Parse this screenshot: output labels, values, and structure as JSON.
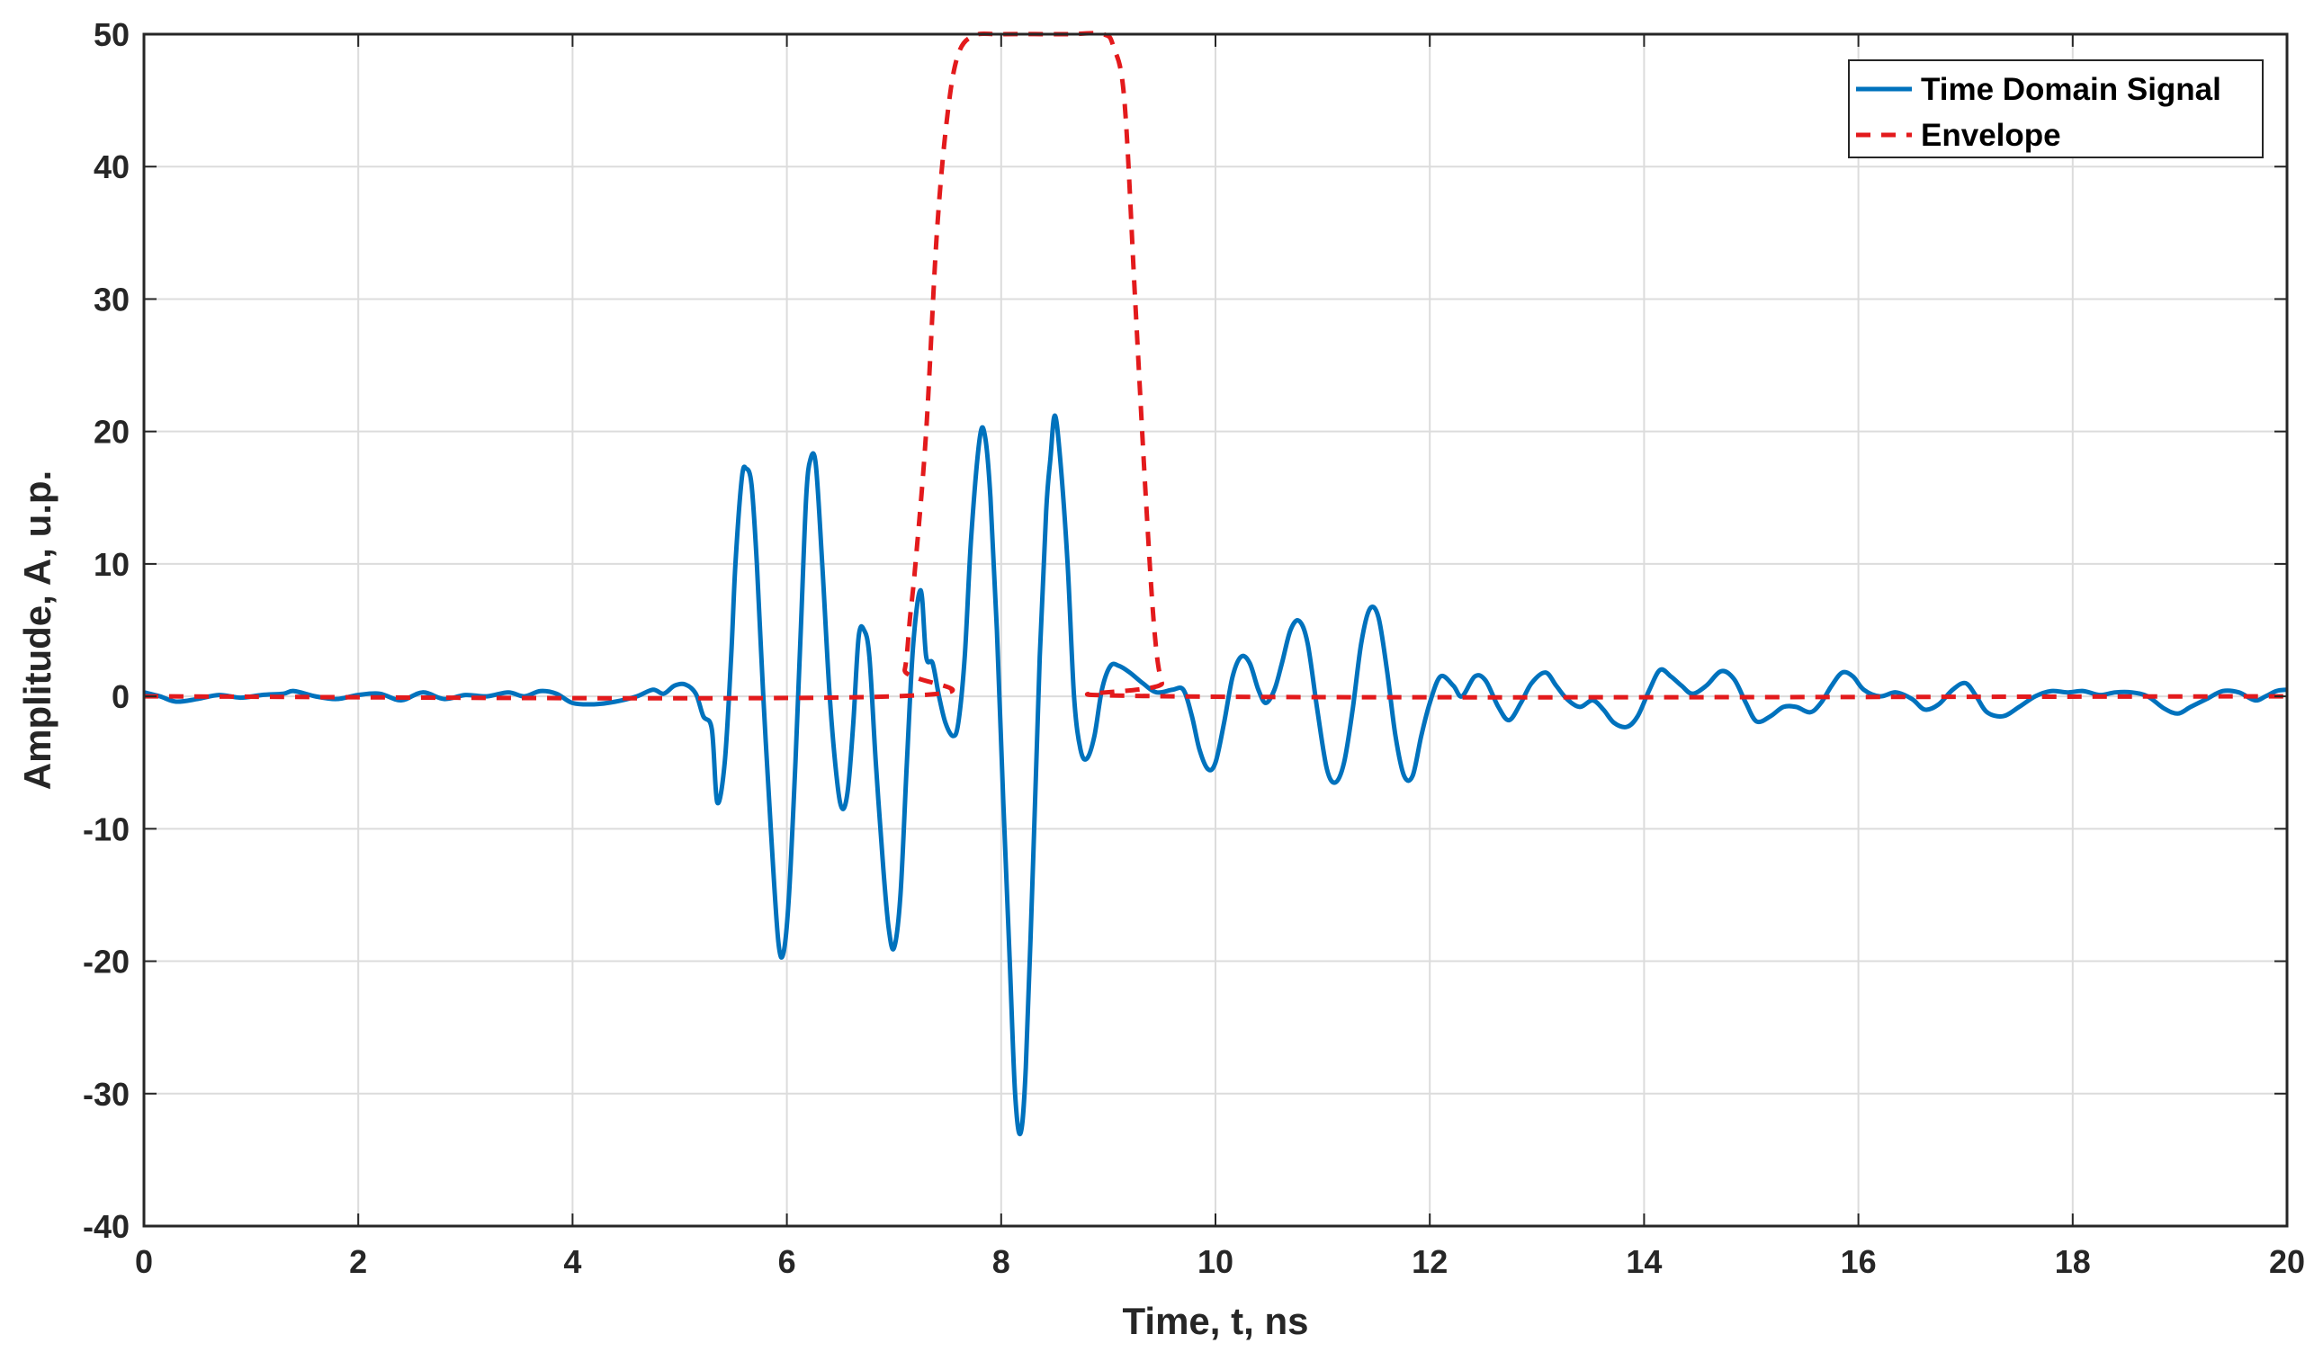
{
  "chart_data": {
    "type": "line",
    "title": "",
    "xlabel": "Time, t, ns",
    "ylabel": "Amplitude, A, u.p.",
    "xlim": [
      0,
      20
    ],
    "ylim": [
      -40,
      50
    ],
    "xticks": [
      0,
      2,
      4,
      6,
      8,
      10,
      12,
      14,
      16,
      18,
      20
    ],
    "yticks": [
      -40,
      -30,
      -20,
      -10,
      0,
      10,
      20,
      30,
      40,
      50
    ],
    "xtick_labels": [
      "0",
      "2",
      "4",
      "6",
      "8",
      "10",
      "12",
      "14",
      "16",
      "18",
      "20"
    ],
    "ytick_labels": [
      "-40",
      "-30",
      "-20",
      "-10",
      "0",
      "10",
      "20",
      "30",
      "40",
      "50"
    ],
    "grid": true,
    "legend_position": "top-right",
    "series": [
      {
        "name": "Time Domain Signal",
        "style": "solid",
        "color": "#0072BD",
        "points": [
          [
            0.0,
            0.3
          ],
          [
            0.15,
            0.0
          ],
          [
            0.3,
            -0.4
          ],
          [
            0.5,
            -0.2
          ],
          [
            0.7,
            0.1
          ],
          [
            0.9,
            -0.1
          ],
          [
            1.1,
            0.1
          ],
          [
            1.3,
            0.2
          ],
          [
            1.4,
            0.4
          ],
          [
            1.6,
            0.0
          ],
          [
            1.8,
            -0.2
          ],
          [
            2.0,
            0.1
          ],
          [
            2.2,
            0.2
          ],
          [
            2.4,
            -0.3
          ],
          [
            2.6,
            0.3
          ],
          [
            2.8,
            -0.2
          ],
          [
            3.0,
            0.1
          ],
          [
            3.2,
            0.0
          ],
          [
            3.4,
            0.3
          ],
          [
            3.55,
            0.0
          ],
          [
            3.7,
            0.4
          ],
          [
            3.85,
            0.2
          ],
          [
            4.0,
            -0.5
          ],
          [
            4.2,
            -0.6
          ],
          [
            4.4,
            -0.4
          ],
          [
            4.6,
            0.0
          ],
          [
            4.75,
            0.5
          ],
          [
            4.85,
            0.2
          ],
          [
            4.95,
            0.8
          ],
          [
            5.05,
            0.9
          ],
          [
            5.15,
            0.2
          ],
          [
            5.22,
            -1.5
          ],
          [
            5.3,
            -2.5
          ],
          [
            5.35,
            -8.0
          ],
          [
            5.42,
            -5.0
          ],
          [
            5.48,
            3.0
          ],
          [
            5.52,
            10.0
          ],
          [
            5.58,
            16.5
          ],
          [
            5.62,
            17.2
          ],
          [
            5.67,
            16.0
          ],
          [
            5.72,
            10.0
          ],
          [
            5.78,
            0.0
          ],
          [
            5.85,
            -10.0
          ],
          [
            5.92,
            -18.5
          ],
          [
            5.97,
            -19.3
          ],
          [
            6.02,
            -15.0
          ],
          [
            6.08,
            -5.0
          ],
          [
            6.13,
            5.0
          ],
          [
            6.18,
            15.0
          ],
          [
            6.22,
            17.9
          ],
          [
            6.27,
            17.5
          ],
          [
            6.33,
            10.0
          ],
          [
            6.4,
            0.0
          ],
          [
            6.47,
            -6.5
          ],
          [
            6.52,
            -8.5
          ],
          [
            6.57,
            -7.0
          ],
          [
            6.62,
            -2.0
          ],
          [
            6.67,
            4.5
          ],
          [
            6.72,
            5.0
          ],
          [
            6.77,
            3.0
          ],
          [
            6.83,
            -5.0
          ],
          [
            6.9,
            -13.0
          ],
          [
            6.95,
            -17.5
          ],
          [
            7.0,
            -19.0
          ],
          [
            7.06,
            -15.0
          ],
          [
            7.12,
            -5.0
          ],
          [
            7.18,
            4.0
          ],
          [
            7.25,
            8.0
          ],
          [
            7.3,
            3.0
          ],
          [
            7.36,
            2.5
          ],
          [
            7.42,
            0.0
          ],
          [
            7.48,
            -2.0
          ],
          [
            7.55,
            -3.0
          ],
          [
            7.6,
            -2.0
          ],
          [
            7.66,
            3.0
          ],
          [
            7.72,
            12.0
          ],
          [
            7.8,
            19.5
          ],
          [
            7.85,
            19.6
          ],
          [
            7.9,
            15.0
          ],
          [
            7.96,
            5.0
          ],
          [
            8.02,
            -8.0
          ],
          [
            8.08,
            -20.0
          ],
          [
            8.13,
            -30.0
          ],
          [
            8.18,
            -33.0
          ],
          [
            8.23,
            -28.0
          ],
          [
            8.3,
            -12.0
          ],
          [
            8.36,
            3.0
          ],
          [
            8.42,
            14.0
          ],
          [
            8.46,
            18.0
          ],
          [
            8.5,
            21.2
          ],
          [
            8.55,
            18.0
          ],
          [
            8.62,
            10.0
          ],
          [
            8.68,
            0.0
          ],
          [
            8.74,
            -4.0
          ],
          [
            8.8,
            -4.7
          ],
          [
            8.87,
            -3.0
          ],
          [
            8.94,
            0.5
          ],
          [
            9.02,
            2.3
          ],
          [
            9.1,
            2.3
          ],
          [
            9.2,
            1.8
          ],
          [
            9.32,
            1.0
          ],
          [
            9.45,
            0.3
          ],
          [
            9.6,
            0.5
          ],
          [
            9.7,
            0.5
          ],
          [
            9.78,
            -1.5
          ],
          [
            9.85,
            -4.0
          ],
          [
            9.93,
            -5.5
          ],
          [
            10.0,
            -5.0
          ],
          [
            10.08,
            -2.0
          ],
          [
            10.16,
            1.5
          ],
          [
            10.24,
            3.0
          ],
          [
            10.32,
            2.5
          ],
          [
            10.4,
            0.5
          ],
          [
            10.47,
            -0.5
          ],
          [
            10.55,
            0.5
          ],
          [
            10.62,
            2.5
          ],
          [
            10.7,
            5.0
          ],
          [
            10.78,
            5.7
          ],
          [
            10.86,
            4.0
          ],
          [
            10.95,
            -1.0
          ],
          [
            11.04,
            -5.5
          ],
          [
            11.12,
            -6.5
          ],
          [
            11.2,
            -5.0
          ],
          [
            11.28,
            -1.0
          ],
          [
            11.36,
            4.0
          ],
          [
            11.44,
            6.6
          ],
          [
            11.52,
            6.0
          ],
          [
            11.6,
            2.0
          ],
          [
            11.68,
            -3.0
          ],
          [
            11.76,
            -6.0
          ],
          [
            11.84,
            -6.0
          ],
          [
            11.92,
            -3.0
          ],
          [
            12.0,
            -0.5
          ],
          [
            12.1,
            1.5
          ],
          [
            12.22,
            0.8
          ],
          [
            12.3,
            0.0
          ],
          [
            12.42,
            1.5
          ],
          [
            12.52,
            1.2
          ],
          [
            12.64,
            -0.8
          ],
          [
            12.74,
            -1.8
          ],
          [
            12.85,
            -0.5
          ],
          [
            12.95,
            1.0
          ],
          [
            13.08,
            1.8
          ],
          [
            13.18,
            0.8
          ],
          [
            13.28,
            -0.2
          ],
          [
            13.4,
            -0.8
          ],
          [
            13.52,
            -0.3
          ],
          [
            13.62,
            -1.0
          ],
          [
            13.72,
            -2.0
          ],
          [
            13.84,
            -2.3
          ],
          [
            13.94,
            -1.5
          ],
          [
            14.05,
            0.5
          ],
          [
            14.15,
            2.0
          ],
          [
            14.25,
            1.5
          ],
          [
            14.35,
            0.8
          ],
          [
            14.45,
            0.2
          ],
          [
            14.58,
            0.8
          ],
          [
            14.72,
            1.9
          ],
          [
            14.84,
            1.3
          ],
          [
            14.95,
            -0.5
          ],
          [
            15.05,
            -1.9
          ],
          [
            15.18,
            -1.5
          ],
          [
            15.3,
            -0.8
          ],
          [
            15.42,
            -0.8
          ],
          [
            15.55,
            -1.2
          ],
          [
            15.65,
            -0.5
          ],
          [
            15.75,
            0.8
          ],
          [
            15.85,
            1.8
          ],
          [
            15.95,
            1.5
          ],
          [
            16.05,
            0.5
          ],
          [
            16.2,
            0.0
          ],
          [
            16.35,
            0.3
          ],
          [
            16.5,
            -0.2
          ],
          [
            16.62,
            -1.0
          ],
          [
            16.75,
            -0.6
          ],
          [
            16.88,
            0.5
          ],
          [
            17.0,
            1.0
          ],
          [
            17.1,
            0.0
          ],
          [
            17.2,
            -1.2
          ],
          [
            17.35,
            -1.5
          ],
          [
            17.5,
            -0.8
          ],
          [
            17.65,
            0.0
          ],
          [
            17.8,
            0.4
          ],
          [
            17.95,
            0.3
          ],
          [
            18.1,
            0.4
          ],
          [
            18.25,
            0.1
          ],
          [
            18.4,
            0.3
          ],
          [
            18.55,
            0.3
          ],
          [
            18.7,
            0.0
          ],
          [
            18.85,
            -0.9
          ],
          [
            18.98,
            -1.3
          ],
          [
            19.1,
            -0.8
          ],
          [
            19.25,
            -0.2
          ],
          [
            19.4,
            0.4
          ],
          [
            19.55,
            0.3
          ],
          [
            19.7,
            -0.3
          ],
          [
            19.8,
            0.0
          ],
          [
            19.9,
            0.4
          ],
          [
            20.0,
            0.5
          ]
        ]
      },
      {
        "name": "Envelope",
        "style": "dashed",
        "color": "#E31A1C",
        "points": [
          [
            0.0,
            0.0
          ],
          [
            7.0,
            0.0
          ],
          [
            7.1,
            2.0
          ],
          [
            7.15,
            6.0
          ],
          [
            7.2,
            10.0
          ],
          [
            7.3,
            20.0
          ],
          [
            7.4,
            35.0
          ],
          [
            7.5,
            44.0
          ],
          [
            7.6,
            48.5
          ],
          [
            7.75,
            49.9
          ],
          [
            8.0,
            50.0
          ],
          [
            8.6,
            50.0
          ],
          [
            8.95,
            50.0
          ],
          [
            9.05,
            49.0
          ],
          [
            9.15,
            45.0
          ],
          [
            9.25,
            30.0
          ],
          [
            9.35,
            15.0
          ],
          [
            9.43,
            5.0
          ],
          [
            9.5,
            1.0
          ],
          [
            9.6,
            0.0
          ],
          [
            20.0,
            0.0
          ]
        ]
      }
    ]
  },
  "legend": {
    "items": [
      {
        "label": "Time Domain Signal",
        "color": "#0072BD",
        "style": "solid"
      },
      {
        "label": "Envelope",
        "color": "#E31A1C",
        "style": "dashed"
      }
    ]
  }
}
